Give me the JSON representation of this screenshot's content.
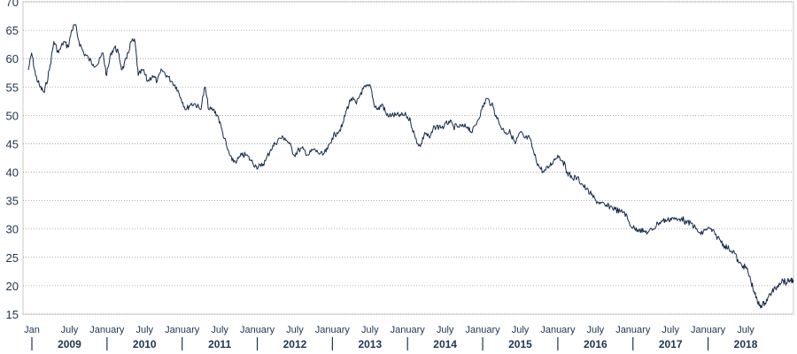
{
  "chart_data": {
    "type": "line",
    "title": "",
    "xlabel": "",
    "ylabel": "",
    "ylim": [
      15,
      70
    ],
    "yticks": [
      "15",
      "20",
      "25",
      "30",
      "35",
      "40",
      "45",
      "50",
      "55",
      "60",
      "65",
      "70"
    ],
    "grid": true,
    "legend": "none",
    "line_color": "#13294b",
    "x_month_labels": [
      "Jan",
      "July",
      "January",
      "July",
      "January",
      "July",
      "January",
      "July",
      "January",
      "July",
      "January",
      "July",
      "January",
      "July",
      "January",
      "July",
      "January",
      "July",
      "January",
      "July"
    ],
    "x_year_labels": [
      "2009",
      "2010",
      "2011",
      "2012",
      "2013",
      "2014",
      "2015",
      "2016",
      "2017",
      "2018"
    ],
    "series": [
      {
        "values": [
          [
            "2009-01-01",
            58
          ],
          [
            "2009-01-15",
            61
          ],
          [
            "2009-02-01",
            57
          ],
          [
            "2009-02-20",
            55
          ],
          [
            "2009-03-10",
            54
          ],
          [
            "2009-04-01",
            58
          ],
          [
            "2009-04-20",
            63
          ],
          [
            "2009-05-10",
            61
          ],
          [
            "2009-06-01",
            63
          ],
          [
            "2009-06-20",
            62
          ],
          [
            "2009-07-05",
            65
          ],
          [
            "2009-07-20",
            66
          ],
          [
            "2009-08-05",
            63
          ],
          [
            "2009-08-25",
            61
          ],
          [
            "2009-09-15",
            60
          ],
          [
            "2009-10-05",
            59
          ],
          [
            "2009-10-25",
            59
          ],
          [
            "2009-11-15",
            61
          ],
          [
            "2009-12-01",
            57
          ],
          [
            "2009-12-20",
            61
          ],
          [
            "2010-01-05",
            62
          ],
          [
            "2010-01-20",
            61
          ],
          [
            "2010-02-05",
            58
          ],
          [
            "2010-02-25",
            60
          ],
          [
            "2010-03-15",
            63
          ],
          [
            "2010-04-01",
            63
          ],
          [
            "2010-04-15",
            57
          ],
          [
            "2010-05-05",
            58
          ],
          [
            "2010-05-25",
            56
          ],
          [
            "2010-06-15",
            57
          ],
          [
            "2010-07-05",
            56
          ],
          [
            "2010-07-25",
            58
          ],
          [
            "2010-08-15",
            57
          ],
          [
            "2010-09-05",
            56
          ],
          [
            "2010-09-25",
            55
          ],
          [
            "2010-10-15",
            53
          ],
          [
            "2010-11-05",
            51
          ],
          [
            "2010-11-25",
            52
          ],
          [
            "2010-12-15",
            52
          ],
          [
            "2011-01-05",
            51
          ],
          [
            "2011-01-25",
            55
          ],
          [
            "2011-02-10",
            51
          ],
          [
            "2011-03-01",
            51
          ],
          [
            "2011-03-20",
            50
          ],
          [
            "2011-04-10",
            47
          ],
          [
            "2011-05-01",
            44
          ],
          [
            "2011-05-20",
            42
          ],
          [
            "2011-06-10",
            42
          ],
          [
            "2011-07-01",
            43
          ],
          [
            "2011-07-20",
            43
          ],
          [
            "2011-08-10",
            42
          ],
          [
            "2011-09-01",
            41
          ],
          [
            "2011-09-20",
            41
          ],
          [
            "2011-10-10",
            42
          ],
          [
            "2011-11-01",
            44
          ],
          [
            "2011-11-20",
            45
          ],
          [
            "2011-12-10",
            46
          ],
          [
            "2012-01-01",
            46
          ],
          [
            "2012-01-20",
            45
          ],
          [
            "2012-02-10",
            43
          ],
          [
            "2012-03-01",
            44
          ],
          [
            "2012-03-20",
            44
          ],
          [
            "2012-04-10",
            43
          ],
          [
            "2012-05-01",
            44
          ],
          [
            "2012-05-20",
            43.5
          ],
          [
            "2012-06-10",
            43
          ],
          [
            "2012-07-01",
            44
          ],
          [
            "2012-07-20",
            46
          ],
          [
            "2012-08-10",
            47
          ],
          [
            "2012-09-01",
            48
          ],
          [
            "2012-09-20",
            51
          ],
          [
            "2012-10-10",
            53
          ],
          [
            "2012-11-01",
            52
          ],
          [
            "2012-11-20",
            54
          ],
          [
            "2012-12-10",
            55
          ],
          [
            "2013-01-01",
            55
          ],
          [
            "2013-01-15",
            52
          ],
          [
            "2013-02-01",
            51
          ],
          [
            "2013-02-20",
            52
          ],
          [
            "2013-03-10",
            50
          ],
          [
            "2013-04-01",
            50
          ],
          [
            "2013-04-20",
            50
          ],
          [
            "2013-05-10",
            50
          ],
          [
            "2013-06-01",
            50
          ],
          [
            "2013-06-20",
            49
          ],
          [
            "2013-07-10",
            46
          ],
          [
            "2013-08-01",
            44.5
          ],
          [
            "2013-08-20",
            47
          ],
          [
            "2013-09-10",
            46
          ],
          [
            "2013-10-01",
            48
          ],
          [
            "2013-10-20",
            48
          ],
          [
            "2013-11-10",
            48
          ],
          [
            "2013-12-01",
            49
          ],
          [
            "2013-12-20",
            48
          ],
          [
            "2014-01-10",
            48
          ],
          [
            "2014-02-01",
            48
          ],
          [
            "2014-02-20",
            48
          ],
          [
            "2014-03-10",
            47
          ],
          [
            "2014-04-01",
            49
          ],
          [
            "2014-04-20",
            51
          ],
          [
            "2014-05-10",
            53
          ],
          [
            "2014-06-01",
            52
          ],
          [
            "2014-06-20",
            50
          ],
          [
            "2014-07-10",
            48
          ],
          [
            "2014-08-01",
            47
          ],
          [
            "2014-08-20",
            47
          ],
          [
            "2014-09-10",
            45
          ],
          [
            "2014-10-01",
            47
          ],
          [
            "2014-10-20",
            46
          ],
          [
            "2014-11-10",
            46
          ],
          [
            "2014-12-01",
            43
          ],
          [
            "2014-12-20",
            41
          ],
          [
            "2015-01-10",
            40
          ],
          [
            "2015-02-01",
            41
          ],
          [
            "2015-02-20",
            42
          ],
          [
            "2015-03-10",
            43
          ],
          [
            "2015-04-01",
            42
          ],
          [
            "2015-04-20",
            40
          ],
          [
            "2015-05-10",
            39
          ],
          [
            "2015-06-01",
            39
          ],
          [
            "2015-06-20",
            38
          ],
          [
            "2015-07-10",
            37
          ],
          [
            "2015-08-01",
            36
          ],
          [
            "2015-08-20",
            35
          ],
          [
            "2015-09-10",
            34.5
          ],
          [
            "2015-10-01",
            34
          ],
          [
            "2015-10-20",
            34
          ],
          [
            "2015-11-10",
            33.5
          ],
          [
            "2015-12-01",
            33
          ],
          [
            "2015-12-20",
            33
          ],
          [
            "2016-01-10",
            31
          ],
          [
            "2016-02-01",
            30
          ],
          [
            "2016-02-20",
            30
          ],
          [
            "2016-03-10",
            29.5
          ],
          [
            "2016-04-01",
            29.5
          ],
          [
            "2016-04-20",
            30
          ],
          [
            "2016-05-10",
            31
          ],
          [
            "2016-06-01",
            31.5
          ],
          [
            "2016-06-20",
            31.5
          ],
          [
            "2016-07-10",
            32
          ],
          [
            "2016-08-01",
            31.5
          ],
          [
            "2016-08-20",
            32
          ],
          [
            "2016-09-10",
            31
          ],
          [
            "2016-10-01",
            31
          ],
          [
            "2016-10-20",
            30
          ],
          [
            "2016-11-10",
            29
          ],
          [
            "2016-12-01",
            30
          ],
          [
            "2016-12-20",
            30
          ],
          [
            "2017-01-10",
            29
          ],
          [
            "2017-02-01",
            28
          ],
          [
            "2017-02-20",
            27
          ],
          [
            "2017-03-10",
            26.5
          ],
          [
            "2017-04-01",
            26
          ],
          [
            "2017-04-20",
            24
          ],
          [
            "2017-05-10",
            23.5
          ],
          [
            "2017-05-25",
            23
          ],
          [
            "2017-06-10",
            21
          ],
          [
            "2017-06-25",
            19
          ],
          [
            "2017-07-10",
            17
          ],
          [
            "2017-07-25",
            16.5
          ],
          [
            "2017-08-10",
            17
          ],
          [
            "2017-08-25",
            18
          ],
          [
            "2017-09-10",
            19
          ],
          [
            "2017-09-25",
            19.5
          ],
          [
            "2017-10-10",
            20.5
          ],
          [
            "2017-10-25",
            21
          ],
          [
            "2017-11-10",
            20.5
          ],
          [
            "2017-11-25",
            21
          ],
          [
            "2017-12-10",
            21
          ]
        ]
      }
    ]
  }
}
